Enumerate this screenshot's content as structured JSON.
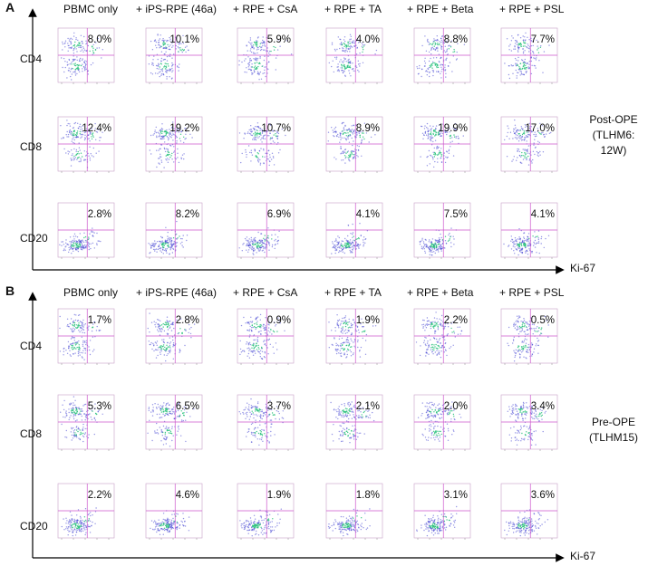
{
  "columns": [
    "PBMC only",
    "+ iPS-RPE (46a)",
    "+ RPE + CsA",
    "+ RPE + TA",
    "+ RPE + Beta",
    "+ RPE + PSL"
  ],
  "x_axis_label": "Ki-67",
  "panels": [
    {
      "letter": "A",
      "condition": [
        "Post-OPE",
        "(TLHM6: 12W)"
      ],
      "rows": [
        {
          "marker": "CD4",
          "percents": [
            "8.0%",
            "10.1%",
            "5.9%",
            "4.0%",
            "8.8%",
            "7.7%"
          ]
        },
        {
          "marker": "CD8",
          "percents": [
            "12.4%",
            "19.2%",
            "10.7%",
            "8.9%",
            "19.9%",
            "17.0%"
          ]
        },
        {
          "marker": "CD20",
          "percents": [
            "2.8%",
            "8.2%",
            "6.9%",
            "4.1%",
            "7.5%",
            "4.1%"
          ]
        }
      ]
    },
    {
      "letter": "B",
      "condition": [
        "Pre-OPE",
        "(TLHM15)"
      ],
      "rows": [
        {
          "marker": "CD4",
          "percents": [
            "1.7%",
            "2.8%",
            "0.9%",
            "1.9%",
            "2.2%",
            "0.5%"
          ]
        },
        {
          "marker": "CD8",
          "percents": [
            "5.3%",
            "6.5%",
            "3.7%",
            "2.1%",
            "2.0%",
            "3.4%"
          ]
        },
        {
          "marker": "CD20",
          "percents": [
            "2.2%",
            "4.6%",
            "1.9%",
            "1.8%",
            "3.1%",
            "3.6%"
          ]
        }
      ]
    }
  ],
  "colors": {
    "dots": "#3b3bcf",
    "dense": "#2ec27e",
    "gate": "#cc55cc",
    "axis": "#000000"
  }
}
